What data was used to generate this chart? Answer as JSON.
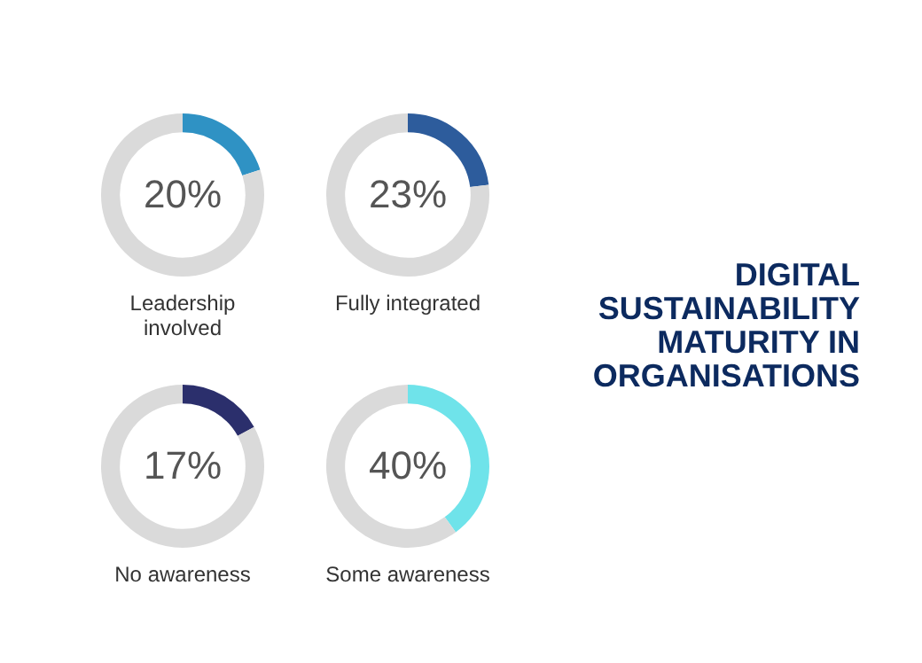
{
  "chart_data": [
    {
      "type": "donut",
      "xlabel": "Leadership involved",
      "categories": [
        null,
        null
      ],
      "values": [
        20,
        80
      ],
      "colors": [
        "#2f92c4",
        "#dadada"
      ],
      "value_labels": [
        "20%",
        null
      ]
    },
    {
      "type": "donut",
      "xlabel": "Fully integrated",
      "categories": [
        null,
        null
      ],
      "values": [
        23,
        77
      ],
      "colors": [
        "#2d5c9c",
        "#dadada"
      ],
      "value_labels": [
        "23%",
        null
      ]
    },
    {
      "type": "other",
      "title": "DIGITAL SUSTAINABILITY MATURITY IN ORGANISATIONS"
    },
    {
      "type": "donut",
      "xlabel": "No awareness",
      "categories": [
        null,
        null
      ],
      "values": [
        17,
        83
      ],
      "colors": [
        "#2b2f6c",
        "#dadada"
      ],
      "value_labels": [
        "17%",
        null
      ]
    },
    {
      "type": "donut",
      "xlabel": "Some awareness",
      "categories": [
        null,
        null
      ],
      "values": [
        40,
        60
      ],
      "colors": [
        "#6fe3ea",
        "#dadada"
      ],
      "value_labels": [
        "40%",
        null
      ]
    }
  ]
}
